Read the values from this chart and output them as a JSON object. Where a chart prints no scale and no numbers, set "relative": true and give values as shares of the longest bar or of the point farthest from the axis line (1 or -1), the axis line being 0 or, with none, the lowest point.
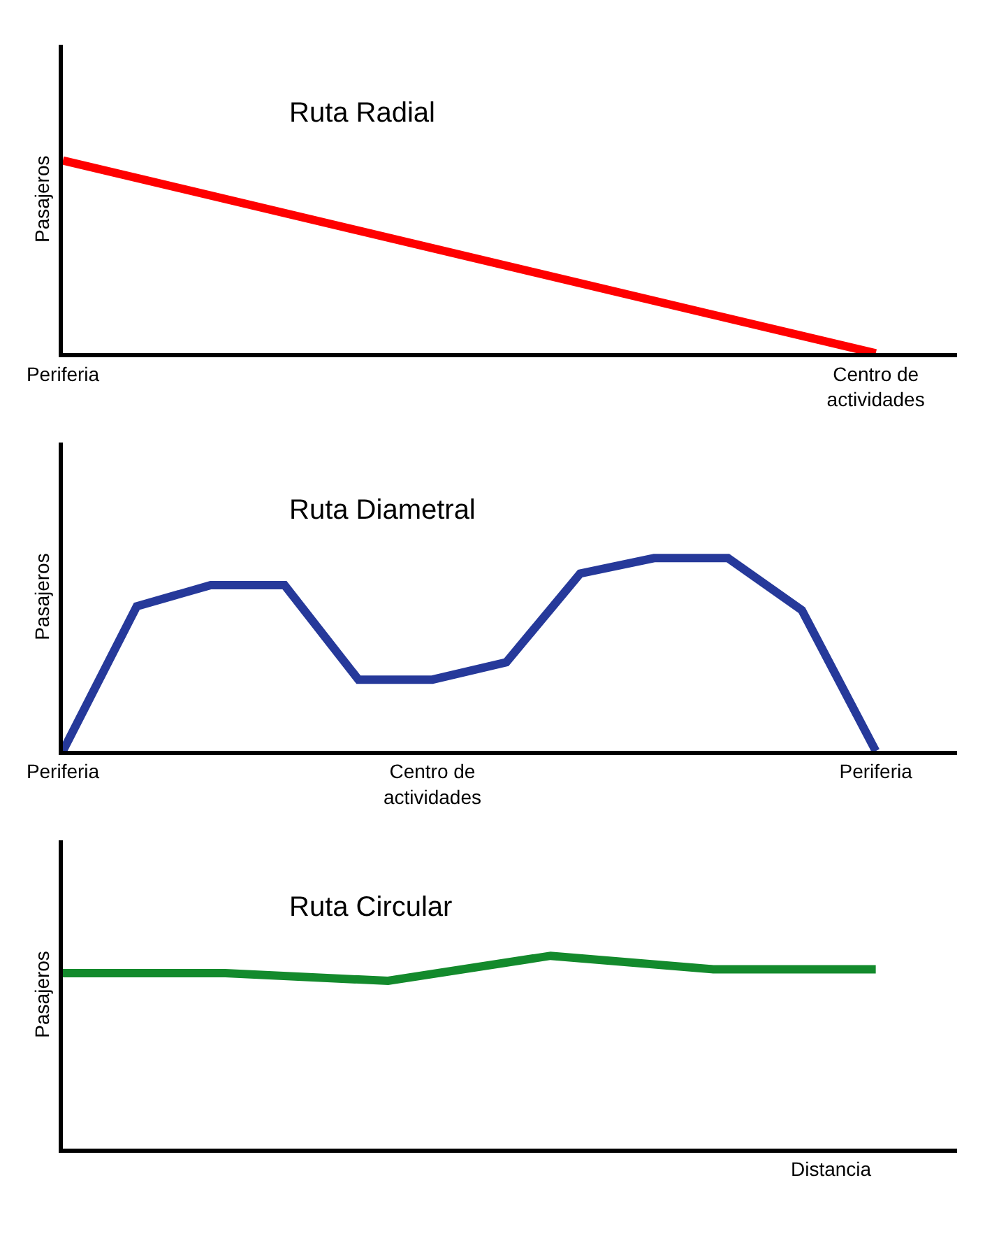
{
  "chart_data": [
    {
      "type": "line",
      "title": "Ruta Radial",
      "ylabel": "Pasajeros",
      "relative": true,
      "categories": [
        "Periferia",
        "Centro de actividades"
      ],
      "line_style": "solid",
      "series": [
        {
          "color": "#ff0000",
          "values": [
            1,
            0
          ]
        }
      ]
    },
    {
      "type": "line",
      "title": "Ruta Diametral",
      "ylabel": "Pasajeros",
      "relative": true,
      "categories": [
        "Periferia",
        null,
        null,
        null,
        null,
        "Centro de actividades",
        null,
        null,
        null,
        null,
        null,
        "Periferia"
      ],
      "line_style": "solid",
      "series": [
        {
          "color": "#26399a",
          "values": [
            0,
            0.75,
            0.86,
            0.86,
            0.37,
            0.37,
            0.46,
            0.92,
            1,
            1,
            0.73,
            0
          ]
        }
      ]
    },
    {
      "type": "line",
      "title": "Ruta Circular",
      "ylabel": "Pasajeros",
      "xlabel": "Distancia",
      "relative": true,
      "categories": [
        null,
        null,
        null,
        null,
        null,
        null
      ],
      "line_style": "solid",
      "series": [
        {
          "color": "#138a2c",
          "values": [
            0.91,
            0.91,
            0.87,
            1,
            0.93,
            0.93
          ]
        }
      ]
    }
  ]
}
